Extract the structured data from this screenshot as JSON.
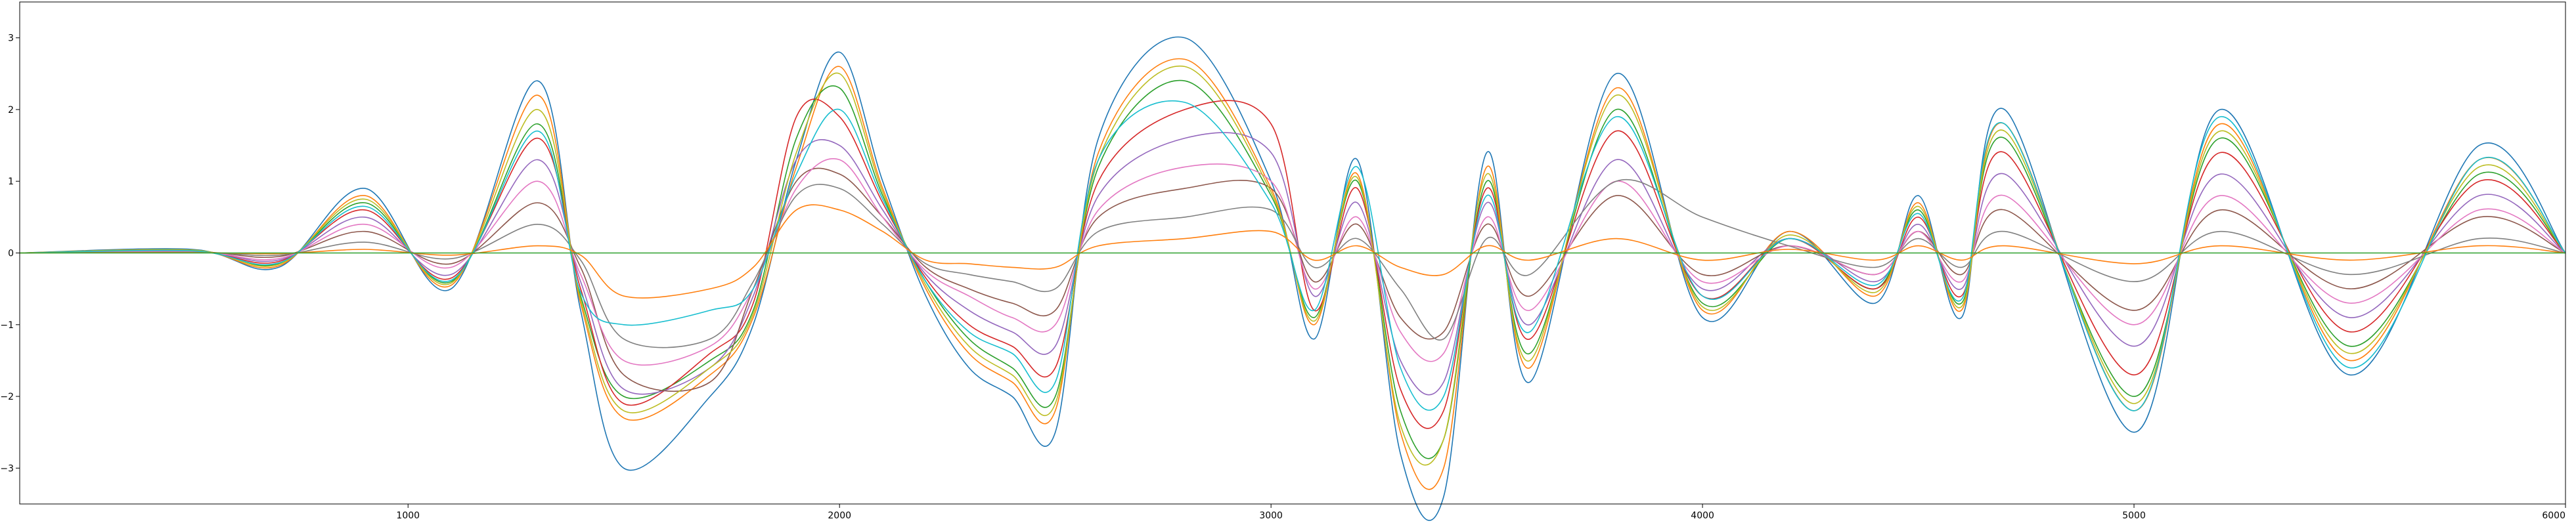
{
  "chart_data": {
    "type": "line",
    "title": "",
    "xlabel": "",
    "ylabel": "",
    "xlim": [
      100,
      6000
    ],
    "ylim": [
      -3.5,
      3.5
    ],
    "x_ticks": [
      1000,
      2000,
      3000,
      4000,
      5000,
      6000
    ],
    "y_ticks": [
      -3,
      -2,
      -1,
      0,
      1,
      2,
      3
    ],
    "x_tick_labels": [
      "1000",
      "2000",
      "3000",
      "4000",
      "5000",
      "6000"
    ],
    "y_tick_labels": [
      "−3",
      "−2",
      "−1",
      "0",
      "1",
      "2",
      "3"
    ],
    "grid": false,
    "legend": "none",
    "x": [
      100,
      500,
      700,
      900,
      1100,
      1300,
      1400,
      1500,
      1700,
      1800,
      1900,
      2000,
      2100,
      2200,
      2300,
      2400,
      2500,
      2600,
      2800,
      3000,
      3100,
      3200,
      3300,
      3400,
      3500,
      3600,
      3800,
      4000,
      4200,
      4400,
      4500,
      4600,
      4700,
      5000,
      5200,
      5500,
      5800,
      6000
    ],
    "series": [
      {
        "color": "#1f77b4",
        "values": [
          0,
          0.05,
          -0.2,
          0.9,
          -0.5,
          2.4,
          -0.8,
          -3.0,
          -2.0,
          -1.0,
          1.3,
          2.8,
          1.0,
          -0.6,
          -1.6,
          -2.0,
          -2.5,
          1.6,
          3.0,
          1.0,
          -1.2,
          1.3,
          -2.8,
          -3.4,
          1.4,
          -1.8,
          2.5,
          -0.9,
          0.3,
          -0.7,
          0.8,
          -0.9,
          2.0,
          -2.5,
          2.0,
          -1.7,
          1.5,
          0.0
        ]
      },
      {
        "color": "#ff7f0e",
        "values": [
          0,
          0.04,
          -0.18,
          0.8,
          -0.45,
          2.2,
          -0.7,
          -2.3,
          -1.7,
          -0.9,
          1.2,
          2.6,
          0.9,
          -0.5,
          -1.4,
          -1.8,
          -2.2,
          1.4,
          2.7,
          0.9,
          -1.0,
          1.1,
          -2.5,
          -3.0,
          1.2,
          -1.6,
          2.3,
          -0.8,
          0.3,
          -0.6,
          0.7,
          -0.8,
          1.8,
          -2.2,
          1.8,
          -1.5,
          1.3,
          0.0
        ]
      },
      {
        "color": "#2ca02c",
        "values": [
          0,
          0.04,
          -0.15,
          0.7,
          -0.4,
          1.8,
          -0.6,
          -2.0,
          -1.5,
          -0.8,
          1.6,
          2.3,
          0.8,
          -0.4,
          -1.2,
          -1.6,
          -2.0,
          1.2,
          2.4,
          0.8,
          -0.9,
          1.0,
          -2.2,
          -2.6,
          1.0,
          -1.4,
          2.0,
          -0.7,
          0.2,
          -0.5,
          0.6,
          -0.7,
          1.6,
          -2.0,
          1.6,
          -1.3,
          1.1,
          0.0
        ]
      },
      {
        "color": "#d62728",
        "values": [
          0,
          0.03,
          -0.12,
          0.6,
          -0.35,
          1.6,
          -0.5,
          -2.1,
          -1.4,
          -0.7,
          1.9,
          1.9,
          0.7,
          -0.35,
          -1.0,
          -1.3,
          -1.6,
          1.0,
          2.0,
          1.8,
          -0.8,
          0.9,
          -1.9,
          -2.2,
          0.9,
          -1.2,
          1.7,
          -0.6,
          0.2,
          -0.5,
          0.5,
          -0.6,
          1.4,
          -1.7,
          1.4,
          -1.1,
          1.0,
          0.0
        ]
      },
      {
        "color": "#9467bd",
        "values": [
          0,
          0.03,
          -0.1,
          0.5,
          -0.3,
          1.3,
          -0.4,
          -1.9,
          -1.6,
          -0.6,
          1.3,
          1.5,
          0.6,
          -0.3,
          -0.8,
          -1.1,
          -1.3,
          0.8,
          1.6,
          1.4,
          -0.6,
          0.7,
          -1.5,
          -1.8,
          0.7,
          -1.0,
          1.3,
          -0.5,
          0.2,
          -0.4,
          0.4,
          -0.5,
          1.1,
          -1.3,
          1.1,
          -0.9,
          0.8,
          0.0
        ]
      },
      {
        "color": "#8c564b",
        "values": [
          0,
          0.02,
          -0.05,
          0.3,
          -0.15,
          0.7,
          -0.2,
          -1.7,
          -1.8,
          -0.5,
          1.0,
          1.1,
          0.5,
          -0.2,
          -0.5,
          -0.7,
          -0.8,
          0.5,
          0.9,
          0.9,
          -0.4,
          0.4,
          -0.9,
          -1.1,
          0.4,
          -0.6,
          0.8,
          -0.3,
          0.1,
          -0.3,
          0.3,
          -0.3,
          0.6,
          -0.8,
          0.6,
          -0.5,
          0.5,
          0.0
        ]
      },
      {
        "color": "#e377c2",
        "values": [
          0,
          0.02,
          -0.08,
          0.4,
          -0.2,
          1.0,
          -0.3,
          -1.5,
          -1.3,
          -0.5,
          0.9,
          1.3,
          0.5,
          -0.25,
          -0.6,
          -0.9,
          -1.0,
          0.6,
          1.2,
          1.0,
          -0.5,
          0.5,
          -1.1,
          -1.4,
          0.5,
          -0.8,
          1.0,
          -0.4,
          0.1,
          -0.3,
          0.3,
          -0.4,
          0.8,
          -1.0,
          0.8,
          -0.7,
          0.6,
          0.0
        ]
      },
      {
        "color": "#7f7f7f",
        "values": [
          0,
          0.01,
          -0.03,
          0.15,
          -0.08,
          0.4,
          -0.1,
          -1.2,
          -1.2,
          -0.4,
          0.8,
          0.9,
          0.4,
          -0.15,
          -0.3,
          -0.4,
          -0.5,
          0.3,
          0.5,
          0.6,
          -0.2,
          0.2,
          -0.5,
          -1.2,
          0.2,
          -0.3,
          1.0,
          0.5,
          0.1,
          -0.2,
          0.2,
          -0.2,
          0.3,
          -0.4,
          0.3,
          -0.3,
          0.2,
          0.0
        ]
      },
      {
        "color": "#bcbd22",
        "values": [
          0,
          0.04,
          -0.16,
          0.75,
          -0.42,
          2.0,
          -0.65,
          -2.2,
          -1.6,
          -0.85,
          1.4,
          2.5,
          0.85,
          -0.45,
          -1.3,
          -1.7,
          -2.1,
          1.3,
          2.6,
          0.85,
          -0.95,
          1.05,
          -2.4,
          -2.6,
          1.1,
          -1.5,
          2.2,
          -0.75,
          0.25,
          -0.55,
          0.65,
          -0.75,
          1.7,
          -2.1,
          1.7,
          -1.4,
          1.2,
          0.0
        ]
      },
      {
        "color": "#17becf",
        "values": [
          0,
          0.03,
          -0.14,
          0.65,
          -0.38,
          1.7,
          -0.55,
          -1.0,
          -0.8,
          -0.5,
          1.1,
          2.0,
          0.75,
          -0.4,
          -1.1,
          -1.4,
          -1.8,
          1.3,
          2.1,
          0.7,
          -0.8,
          1.2,
          -1.6,
          -2.0,
          0.8,
          -1.1,
          1.9,
          -0.6,
          0.2,
          -0.45,
          0.55,
          -0.65,
          1.8,
          -2.2,
          1.9,
          -1.6,
          1.3,
          0.0
        ]
      },
      {
        "color": "#ff7f0e",
        "values": [
          0,
          0.005,
          -0.01,
          0.05,
          -0.03,
          0.1,
          -0.03,
          -0.6,
          -0.5,
          -0.2,
          0.6,
          0.6,
          0.3,
          -0.1,
          -0.15,
          -0.2,
          -0.2,
          0.1,
          0.2,
          0.3,
          -0.1,
          0.1,
          -0.2,
          -0.3,
          0.1,
          -0.1,
          0.2,
          -0.1,
          0.05,
          -0.1,
          0.1,
          -0.1,
          0.1,
          -0.15,
          0.1,
          -0.1,
          0.1,
          0.0
        ]
      },
      {
        "color": "#2ca02c",
        "values": [
          0,
          0.0,
          0.0,
          0.0,
          0.0,
          0.0,
          0.0,
          0.0,
          0.0,
          0.0,
          0.0,
          0.0,
          0.0,
          0.0,
          0.0,
          0.0,
          0.0,
          0.0,
          0.0,
          0.0,
          0.0,
          0.0,
          0.0,
          0.0,
          0.0,
          0.0,
          0.0,
          0.0,
          0.0,
          0.0,
          0.0,
          0.0,
          0.0,
          0.0,
          0.0,
          0.0,
          0.0,
          0.0
        ]
      }
    ]
  }
}
